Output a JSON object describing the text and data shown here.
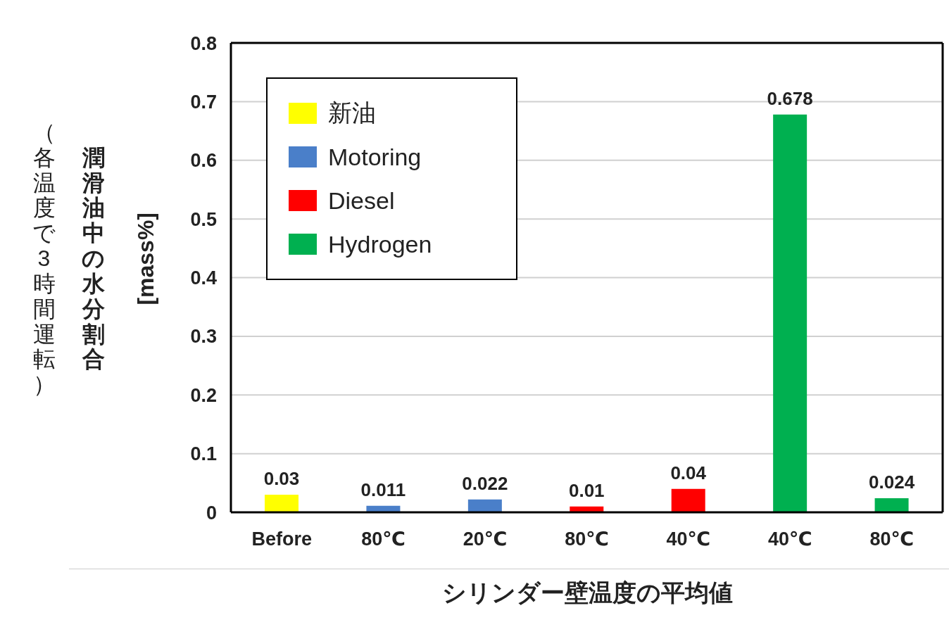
{
  "chart_data": {
    "type": "bar",
    "ylabel": "潤滑油中の水分割合\n[mass%]",
    "xlabel": "シリンダー壁温度の平均値",
    "annotations": [
      "（各温度で3時間運転）"
    ],
    "categories": [
      "Before",
      "80℃",
      "20℃",
      "80℃",
      "40℃",
      "40℃",
      "80℃"
    ],
    "series": [
      {
        "name": "新油",
        "color": "#ffff00",
        "values": [
          0.03,
          null,
          null,
          null,
          null,
          null,
          null
        ]
      },
      {
        "name": "Motoring",
        "color": "#4a7fc9",
        "values": [
          null,
          0.011,
          0.022,
          null,
          null,
          null,
          null
        ]
      },
      {
        "name": "Diesel",
        "color": "#ff0000",
        "values": [
          null,
          null,
          null,
          0.01,
          0.04,
          null,
          null
        ]
      },
      {
        "name": "Hydrogen",
        "color": "#00b050",
        "values": [
          null,
          null,
          null,
          null,
          null,
          0.678,
          0.024
        ]
      }
    ],
    "stacked": true,
    "ylim": [
      0,
      0.8
    ],
    "yticks": [
      0,
      0.1,
      0.2,
      0.3,
      0.4,
      0.5,
      0.6,
      0.7,
      0.8
    ],
    "grid": "y",
    "legend": "top left",
    "data_labels": true
  }
}
